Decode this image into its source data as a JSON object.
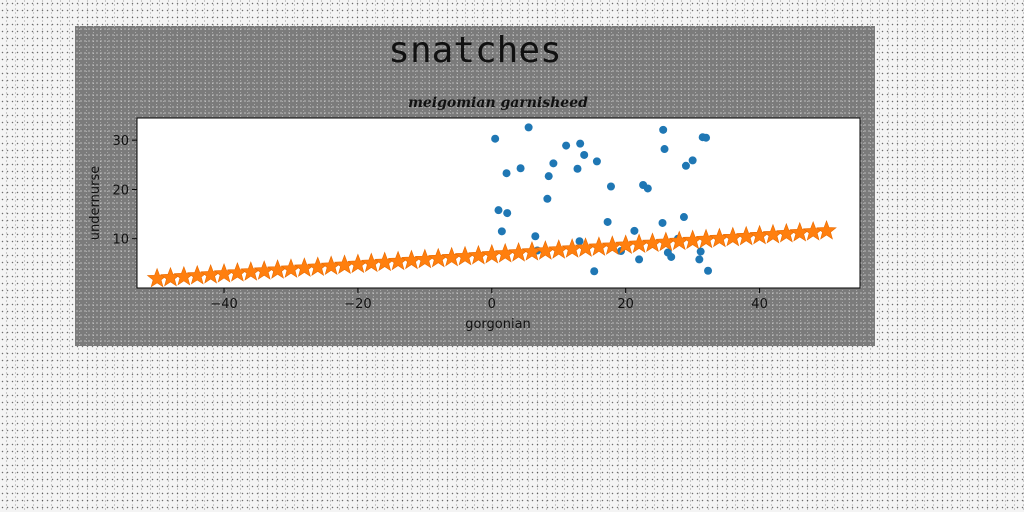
{
  "figure": {
    "title": "snatches"
  },
  "chart_data": {
    "type": "scatter",
    "title": "snatches",
    "subtitle": "meigomian garnisheed",
    "xlabel": "gorgonian",
    "ylabel": "undernurse",
    "xlim": [
      -53,
      55
    ],
    "ylim": [
      0,
      34.5
    ],
    "xticks": [
      -40,
      -20,
      0,
      20,
      40
    ],
    "yticks": [
      10,
      20,
      30
    ],
    "grid": false,
    "series": [
      {
        "marker": "circle",
        "color": "#1f77b4",
        "points": [
          [
            0.5,
            30.3
          ],
          [
            5.5,
            32.6
          ],
          [
            1.0,
            15.8
          ],
          [
            2.3,
            15.2
          ],
          [
            1.5,
            11.5
          ],
          [
            2.2,
            23.3
          ],
          [
            4.3,
            24.3
          ],
          [
            6.5,
            10.5
          ],
          [
            6.8,
            7.6
          ],
          [
            8.3,
            18.1
          ],
          [
            8.5,
            22.7
          ],
          [
            9.2,
            25.3
          ],
          [
            11.1,
            28.9
          ],
          [
            12.8,
            24.2
          ],
          [
            13.1,
            9.5
          ],
          [
            13.2,
            29.3
          ],
          [
            13.8,
            27.0
          ],
          [
            15.3,
            3.4
          ],
          [
            15.7,
            25.7
          ],
          [
            17.3,
            13.4
          ],
          [
            17.8,
            20.6
          ],
          [
            19.3,
            7.5
          ],
          [
            21.3,
            11.6
          ],
          [
            22.0,
            5.8
          ],
          [
            22.6,
            20.9
          ],
          [
            23.3,
            20.2
          ],
          [
            25.5,
            13.2
          ],
          [
            25.6,
            32.1
          ],
          [
            25.8,
            28.2
          ],
          [
            26.3,
            7.2
          ],
          [
            26.8,
            6.3
          ],
          [
            27.8,
            10.0
          ],
          [
            28.7,
            14.4
          ],
          [
            29.0,
            24.8
          ],
          [
            30.0,
            25.9
          ],
          [
            31.0,
            5.8
          ],
          [
            31.2,
            7.4
          ],
          [
            31.5,
            30.6
          ],
          [
            32.0,
            30.5
          ],
          [
            32.3,
            3.5
          ]
        ]
      },
      {
        "marker": "star",
        "color": "#ff7f0e",
        "x_start": -50,
        "x_end": 50,
        "y_start": 1.9,
        "y_end": 11.6,
        "count": 51
      }
    ]
  }
}
